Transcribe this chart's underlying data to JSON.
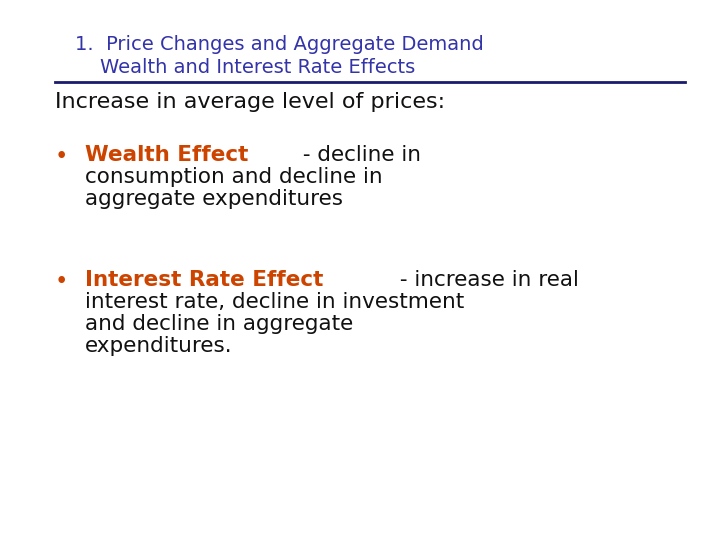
{
  "title_line1": "1.  Price Changes and Aggregate Demand",
  "title_line2": "    Wealth and Interest Rate Effects",
  "title_color": "#3333aa",
  "line_color": "#1a1a6e",
  "subheading": "Increase in average level of prices:",
  "subheading_color": "#111111",
  "bullet1_colored": "Wealth Effect",
  "bullet1_colored_color": "#cc4400",
  "bullet1_rest_line1": " - decline in",
  "bullet1_rest_line2": "consumption and decline in",
  "bullet1_rest_line3": "aggregate expenditures",
  "bullet2_colored": "Interest Rate Effect",
  "bullet2_colored_color": "#cc4400",
  "bullet2_rest_line1": " - increase in real",
  "bullet2_rest_line2": "interest rate, decline in investment",
  "bullet2_rest_line3": "and decline in aggregate",
  "bullet2_rest_line4": "expenditures.",
  "bullet_marker": "•",
  "bullet_color": "#cc4400",
  "text_color": "#111111",
  "bg_color": "#ffffff",
  "title_fontsize": 14,
  "subheading_fontsize": 16,
  "body_fontsize": 15.5
}
